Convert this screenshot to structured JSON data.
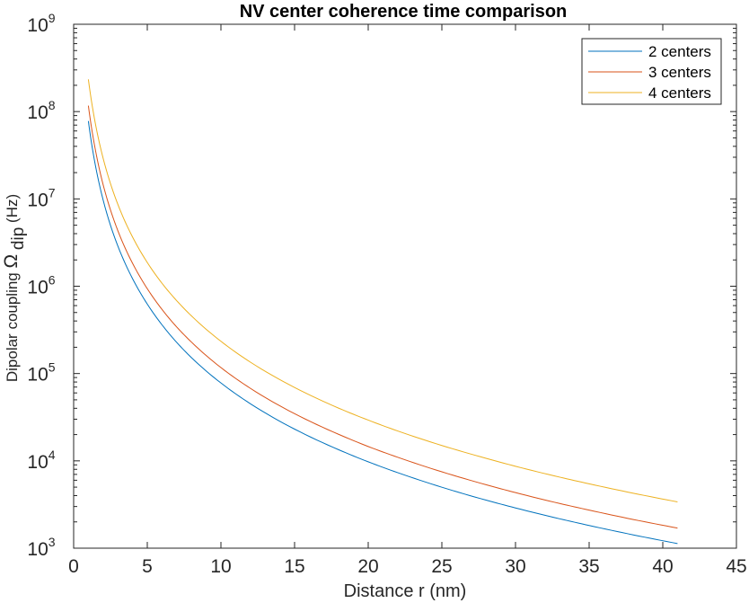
{
  "chart_data": {
    "type": "line",
    "title": "NV center coherence time comparison",
    "xlabel": "Distance r (nm)",
    "ylabel": {
      "prefix": "Dipolar coupling ",
      "symbol": "Ω",
      "subscript": "dip",
      "suffix": " (Hz)"
    },
    "xlim": [
      0,
      45
    ],
    "ylim": [
      1000,
      1000000000
    ],
    "yscale": "log",
    "xticks": [
      0,
      5,
      10,
      15,
      20,
      25,
      30,
      35,
      40,
      45
    ],
    "yticks": [
      {
        "value": 1000,
        "base": "10",
        "exp": "3"
      },
      {
        "value": 10000,
        "base": "10",
        "exp": "4"
      },
      {
        "value": 100000,
        "base": "10",
        "exp": "5"
      },
      {
        "value": 1000000,
        "base": "10",
        "exp": "6"
      },
      {
        "value": 10000000,
        "base": "10",
        "exp": "7"
      },
      {
        "value": 100000000,
        "base": "10",
        "exp": "8"
      },
      {
        "value": 1000000000,
        "base": "10",
        "exp": "9"
      }
    ],
    "grid": false,
    "legend": {
      "position": "top-right"
    },
    "series": [
      {
        "name": "2 centers",
        "color": "#0072BD",
        "x": [
          1,
          1.5,
          2,
          2.5,
          3,
          4,
          5,
          6,
          7,
          8,
          10,
          12,
          15,
          18,
          20,
          22,
          25,
          28,
          30,
          33,
          35,
          38,
          41
        ],
        "y": [
          78000000,
          23100000,
          9750000,
          4990000,
          2890000,
          1220000,
          624000,
          361000,
          227000,
          152000,
          78000,
          45100,
          23100,
          13400,
          9750,
          7330,
          4990,
          3550,
          2890,
          2170,
          1820,
          1420,
          1130
        ]
      },
      {
        "name": "3 centers",
        "color": "#D95319",
        "x": [
          1,
          1.5,
          2,
          2.5,
          3,
          4,
          5,
          6,
          7,
          8,
          10,
          12,
          15,
          18,
          20,
          22,
          25,
          28,
          30,
          33,
          35,
          38,
          41
        ],
        "y": [
          117000000,
          34700000,
          14600000,
          7490000,
          4330000,
          1830000,
          936000,
          542000,
          341000,
          229000,
          117000,
          67700,
          34700,
          20100,
          14600,
          11000,
          7490,
          5330,
          4330,
          3250,
          2730,
          2130,
          1700
        ]
      },
      {
        "name": "4 centers",
        "color": "#EDB120",
        "x": [
          1,
          1.5,
          2,
          2.5,
          3,
          4,
          5,
          6,
          7,
          8,
          10,
          12,
          15,
          18,
          20,
          22,
          25,
          28,
          30,
          33,
          35,
          38,
          41
        ],
        "y": [
          234000000,
          69300000,
          29300000,
          15000000,
          8670000,
          3660000,
          1870000,
          1080000,
          682000,
          457000,
          234000,
          135000,
          69300,
          40100,
          29300,
          22000,
          15000,
          10700,
          8670,
          6510,
          5460,
          4260,
          3390
        ]
      }
    ]
  }
}
